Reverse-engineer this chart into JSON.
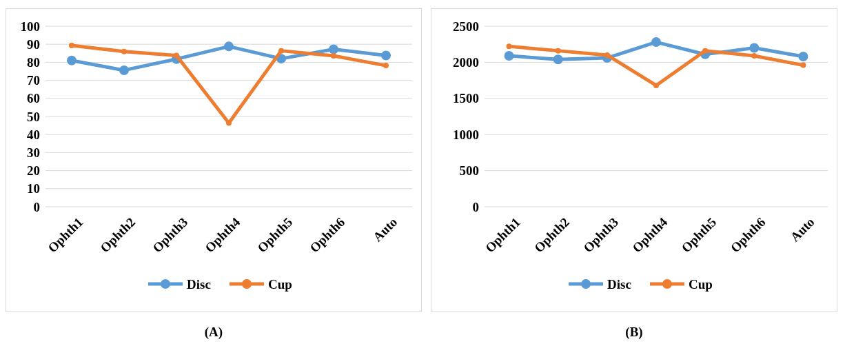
{
  "chart_data": [
    {
      "type": "line",
      "categories": [
        "Ophth1",
        "Ophth2",
        "Ophth3",
        "Ophth4",
        "Ophth5",
        "Ophth6",
        "Auto"
      ],
      "series": [
        {
          "name": "Disc",
          "color": "#5b9bd5",
          "values": [
            81,
            75.6,
            81.8,
            88.8,
            82,
            87.2,
            83.8
          ]
        },
        {
          "name": "Cup",
          "color": "#ed7d31",
          "values": [
            89.3,
            86,
            83.8,
            46.4,
            86.4,
            83.6,
            78.2
          ]
        }
      ],
      "ylim": [
        0,
        100
      ],
      "yticks": [
        0,
        10,
        20,
        30,
        40,
        50,
        60,
        70,
        80,
        90,
        100
      ],
      "grid": "y",
      "legend": "bottom",
      "marker": "circle",
      "line_style": "solid",
      "annotations": [
        "(A)"
      ]
    },
    {
      "type": "line",
      "categories": [
        "Ophth1",
        "Ophth2",
        "Ophth3",
        "Ophth4",
        "Ophth5",
        "Ophth6",
        "Auto"
      ],
      "series": [
        {
          "name": "Disc",
          "color": "#5b9bd5",
          "values": [
            2090,
            2040,
            2060,
            2280,
            2110,
            2200,
            2080
          ]
        },
        {
          "name": "Cup",
          "color": "#ed7d31",
          "values": [
            2220,
            2160,
            2100,
            1680,
            2160,
            2090,
            1960
          ]
        }
      ],
      "ylim": [
        0,
        2500
      ],
      "yticks": [
        0,
        500,
        1000,
        1500,
        2000,
        2500
      ],
      "grid": "y",
      "legend": "bottom",
      "marker": "circle",
      "line_style": "solid",
      "annotations": [
        "(B)"
      ]
    }
  ]
}
